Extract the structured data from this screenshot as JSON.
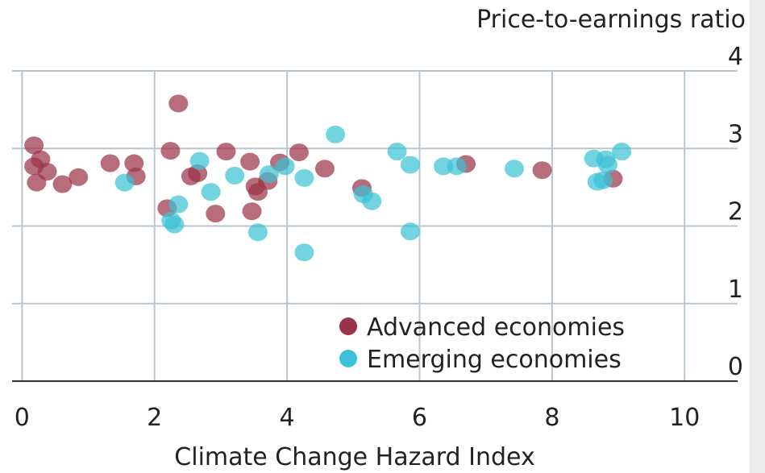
{
  "chart_data": {
    "type": "scatter",
    "title": "Price-to-earnings ratio",
    "x_label": "Climate Change Hazard Index",
    "xlim": [
      -0.15,
      10.8
    ],
    "ylim": [
      0,
      4
    ],
    "xticks": [
      0,
      2,
      4,
      6,
      8,
      10
    ],
    "yticks": [
      0,
      1,
      2,
      3,
      4
    ],
    "grid": true,
    "legend": "bottom-center",
    "series": [
      {
        "name": "Advanced economies",
        "color": "#9b3448",
        "x": [
          0.18,
          0.18,
          0.28,
          0.38,
          0.22,
          0.61,
          0.85,
          1.33,
          1.69,
          1.72,
          2.36,
          2.24,
          2.19,
          2.55,
          2.65,
          2.92,
          3.08,
          3.44,
          3.47,
          3.52,
          3.56,
          3.71,
          3.89,
          4.18,
          4.57,
          5.13,
          6.7,
          7.85,
          8.92
        ],
        "values": [
          3.04,
          2.77,
          2.86,
          2.7,
          2.56,
          2.54,
          2.63,
          2.81,
          2.81,
          2.64,
          3.58,
          2.97,
          2.23,
          2.64,
          2.68,
          2.16,
          2.96,
          2.83,
          2.19,
          2.51,
          2.44,
          2.58,
          2.82,
          2.95,
          2.74,
          2.49,
          2.8,
          2.72,
          2.61
        ]
      },
      {
        "name": "Emerging economies",
        "color": "#3cc2d6",
        "x": [
          1.55,
          2.25,
          2.3,
          2.36,
          2.68,
          2.85,
          3.21,
          3.56,
          3.73,
          3.97,
          4.26,
          4.26,
          4.73,
          5.15,
          5.28,
          5.66,
          5.86,
          5.86,
          6.36,
          6.56,
          7.43,
          8.63,
          8.68,
          8.77,
          8.81,
          8.84,
          9.05
        ],
        "values": [
          2.56,
          2.07,
          2.02,
          2.28,
          2.84,
          2.44,
          2.65,
          1.92,
          2.67,
          2.77,
          2.62,
          1.66,
          3.18,
          2.41,
          2.32,
          2.96,
          2.79,
          1.93,
          2.77,
          2.77,
          2.74,
          2.87,
          2.57,
          2.59,
          2.86,
          2.79,
          2.96
        ]
      }
    ]
  }
}
